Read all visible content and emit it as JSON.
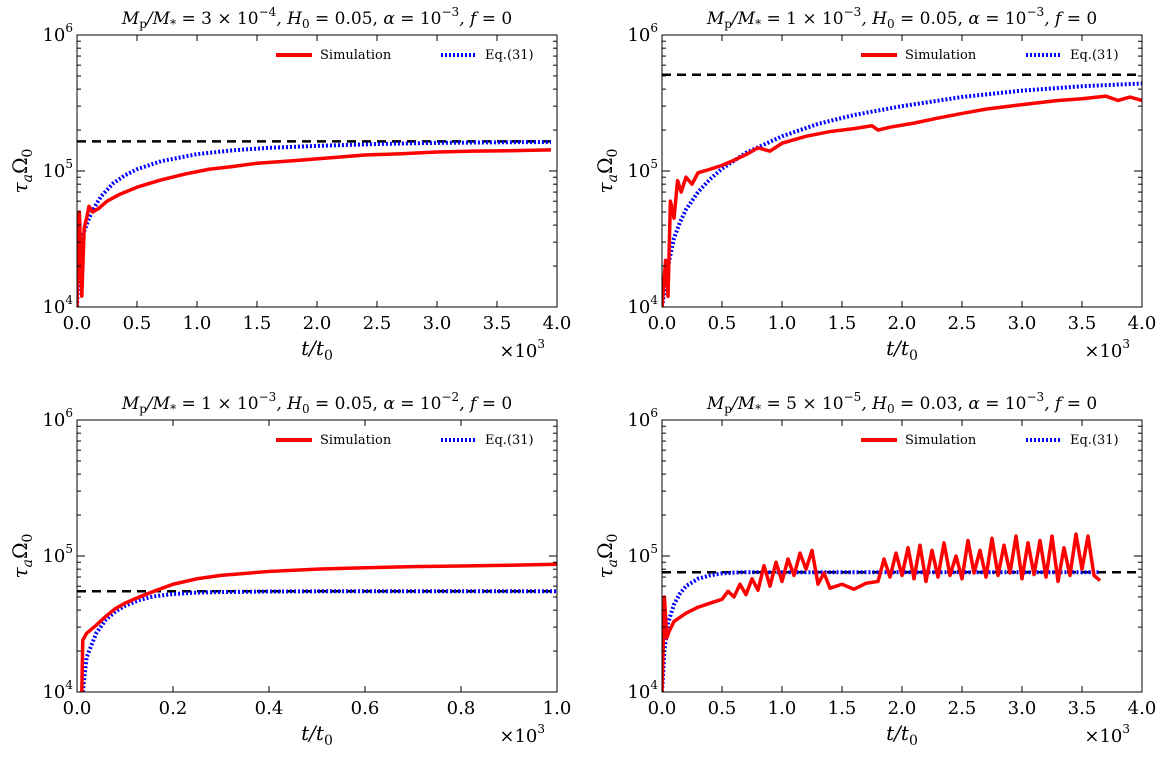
{
  "chart_data": [
    {
      "type": "line",
      "title": "M_p/M_* = 3 × 10^-4, H_0 = 0.05, α = 10^-3, f = 0",
      "title_parts": {
        "ratio": "3 × 10",
        "ratio_exp": "−4",
        "H0": "0.05",
        "alpha_exp": "−3",
        "f": "0"
      },
      "xlabel": "t/t0",
      "ylabel": "τaΩ0",
      "xlim": [
        0,
        4.0
      ],
      "ylim_log10": [
        4,
        6
      ],
      "x_ticks": [
        "0.0",
        "0.5",
        "1.0",
        "1.5",
        "2.0",
        "2.5",
        "3.0",
        "3.5",
        "4.0"
      ],
      "y_ticks": [
        {
          "base": "10",
          "exp": "4"
        },
        {
          "base": "10",
          "exp": "5"
        },
        {
          "base": "10",
          "exp": "6"
        }
      ],
      "x_multiplier": {
        "text": "×10",
        "exp": "3"
      },
      "legend": [
        "Simulation",
        "Eq.(31)"
      ],
      "asymptote": 165000,
      "series": [
        {
          "name": "Simulation",
          "color": "#ff0000",
          "x": [
            0,
            0.02,
            0.04,
            0.06,
            0.08,
            0.1,
            0.13,
            0.18,
            0.25,
            0.35,
            0.5,
            0.7,
            0.9,
            1.1,
            1.3,
            1.5,
            1.8,
            2.1,
            2.4,
            2.7,
            3.0,
            3.3,
            3.6,
            3.95
          ],
          "y": [
            10000,
            50000,
            12000,
            38000,
            45000,
            55000,
            50000,
            53000,
            60000,
            67000,
            76000,
            86000,
            95000,
            103000,
            108000,
            114000,
            119000,
            125000,
            131000,
            134000,
            138000,
            140000,
            141000,
            143000
          ]
        },
        {
          "name": "Eq.(31)",
          "color": "#0000ff",
          "x": [
            0.0,
            0.02,
            0.05,
            0.1,
            0.15,
            0.2,
            0.3,
            0.4,
            0.5,
            0.7,
            1.0,
            1.3,
            1.6,
            2.0,
            2.5,
            3.0,
            3.5,
            3.95
          ],
          "y": [
            10000,
            24000,
            34000,
            45000,
            55000,
            65000,
            81000,
            93000,
            103000,
            118000,
            133000,
            142000,
            148000,
            153000,
            158000,
            161000,
            162500,
            163500
          ]
        }
      ]
    },
    {
      "type": "line",
      "title": "M_p/M_* = 1 × 10^-3, H_0 = 0.05, α = 10^-3, f = 0",
      "title_parts": {
        "ratio": "1 × 10",
        "ratio_exp": "−3",
        "H0": "0.05",
        "alpha_exp": "−3",
        "f": "0"
      },
      "xlabel": "t/t0",
      "ylabel": "τaΩ0",
      "xlim": [
        0,
        4.0
      ],
      "ylim_log10": [
        4,
        6
      ],
      "x_ticks": [
        "0.0",
        "0.5",
        "1.0",
        "1.5",
        "2.0",
        "2.5",
        "3.0",
        "3.5",
        "4.0"
      ],
      "y_ticks": [
        {
          "base": "10",
          "exp": "4"
        },
        {
          "base": "10",
          "exp": "5"
        },
        {
          "base": "10",
          "exp": "6"
        }
      ],
      "x_multiplier": {
        "text": "×10",
        "exp": "3"
      },
      "legend": [
        "Simulation",
        "Eq.(31)"
      ],
      "asymptote": 510000,
      "series": [
        {
          "name": "Simulation",
          "color": "#ff0000",
          "x": [
            0,
            0.03,
            0.05,
            0.07,
            0.1,
            0.13,
            0.16,
            0.2,
            0.25,
            0.3,
            0.4,
            0.5,
            0.6,
            0.7,
            0.8,
            0.9,
            1.0,
            1.2,
            1.4,
            1.6,
            1.75,
            1.8,
            1.9,
            2.1,
            2.3,
            2.5,
            2.7,
            2.9,
            3.1,
            3.3,
            3.5,
            3.7,
            3.8,
            3.9,
            4.0
          ],
          "y": [
            10000,
            22000,
            12000,
            60000,
            45000,
            85000,
            70000,
            90000,
            80000,
            97000,
            103000,
            110000,
            120000,
            132000,
            148000,
            140000,
            160000,
            180000,
            195000,
            205000,
            215000,
            200000,
            210000,
            225000,
            245000,
            265000,
            285000,
            300000,
            315000,
            330000,
            340000,
            355000,
            330000,
            350000,
            330000
          ]
        },
        {
          "name": "Eq.(31)",
          "color": "#0000ff",
          "x": [
            0.0,
            0.03,
            0.06,
            0.1,
            0.15,
            0.2,
            0.3,
            0.4,
            0.5,
            0.7,
            1.0,
            1.3,
            1.6,
            2.0,
            2.5,
            3.0,
            3.5,
            4.0
          ],
          "y": [
            10000,
            15000,
            22000,
            32000,
            42000,
            52000,
            70000,
            87000,
            104000,
            136000,
            180000,
            222000,
            258000,
            300000,
            350000,
            390000,
            420000,
            440000
          ]
        }
      ]
    },
    {
      "type": "line",
      "title": "M_p/M_* = 1 × 10^-3, H_0 = 0.05, α = 10^-2, f = 0",
      "title_parts": {
        "ratio": "1 × 10",
        "ratio_exp": "−3",
        "H0": "0.05",
        "alpha_exp": "−2",
        "f": "0"
      },
      "xlabel": "t/t0",
      "ylabel": "τaΩ0",
      "xlim": [
        0,
        1.0
      ],
      "ylim_log10": [
        4,
        6
      ],
      "x_ticks": [
        "0.0",
        "0.2",
        "0.4",
        "0.6",
        "0.8",
        "1.0"
      ],
      "y_ticks": [
        {
          "base": "10",
          "exp": "4"
        },
        {
          "base": "10",
          "exp": "5"
        },
        {
          "base": "10",
          "exp": "6"
        }
      ],
      "x_multiplier": {
        "text": "×10",
        "exp": "3"
      },
      "legend": [
        "Simulation",
        "Eq.(31)"
      ],
      "asymptote": 55000,
      "series": [
        {
          "name": "Simulation",
          "color": "#ff0000",
          "x": [
            0.01,
            0.012,
            0.02,
            0.04,
            0.06,
            0.08,
            0.1,
            0.13,
            0.16,
            0.2,
            0.25,
            0.3,
            0.4,
            0.5,
            0.6,
            0.7,
            0.8,
            0.9,
            1.0
          ],
          "y": [
            10000,
            24000,
            27000,
            31000,
            36000,
            41000,
            45000,
            50000,
            55000,
            62000,
            68000,
            72000,
            77000,
            80000,
            82000,
            83500,
            84500,
            85500,
            87000
          ]
        },
        {
          "name": "Eq.(31)",
          "color": "#0000ff",
          "x": [
            0.012,
            0.02,
            0.04,
            0.06,
            0.08,
            0.1,
            0.13,
            0.16,
            0.2,
            0.25,
            0.3,
            0.4,
            0.5,
            0.6,
            0.8,
            1.0
          ],
          "y": [
            10000,
            18000,
            27000,
            34000,
            39000,
            43000,
            47500,
            50500,
            52500,
            53800,
            54300,
            54800,
            55000,
            55000,
            55000,
            55000
          ]
        }
      ]
    },
    {
      "type": "line",
      "title": "M_p/M_* = 5 × 10^-5, H_0 = 0.03, α = 10^-3, f = 0",
      "title_parts": {
        "ratio": "5 × 10",
        "ratio_exp": "−5",
        "H0": "0.03",
        "alpha_exp": "−3",
        "f": "0"
      },
      "xlabel": "t/t0",
      "ylabel": "τaΩ0",
      "xlim": [
        0,
        4.0
      ],
      "ylim_log10": [
        4,
        6
      ],
      "x_ticks": [
        "0.0",
        "0.5",
        "1.0",
        "1.5",
        "2.0",
        "2.5",
        "3.0",
        "3.5",
        "4.0"
      ],
      "y_ticks": [
        {
          "base": "10",
          "exp": "4"
        },
        {
          "base": "10",
          "exp": "5"
        },
        {
          "base": "10",
          "exp": "6"
        }
      ],
      "x_multiplier": {
        "text": "×10",
        "exp": "3"
      },
      "legend": [
        "Simulation",
        "Eq.(31)"
      ],
      "asymptote": 76000,
      "series": [
        {
          "name": "Simulation",
          "color": "#ff0000",
          "x": [
            0,
            0.02,
            0.04,
            0.06,
            0.1,
            0.2,
            0.3,
            0.4,
            0.5,
            0.55,
            0.6,
            0.65,
            0.7,
            0.75,
            0.8,
            0.85,
            0.9,
            0.95,
            1.0,
            1.05,
            1.1,
            1.15,
            1.2,
            1.25,
            1.3,
            1.35,
            1.4,
            1.5,
            1.6,
            1.7,
            1.8,
            1.85,
            1.9,
            1.95,
            2.0,
            2.05,
            2.1,
            2.15,
            2.2,
            2.25,
            2.3,
            2.35,
            2.4,
            2.45,
            2.5,
            2.55,
            2.6,
            2.65,
            2.7,
            2.75,
            2.8,
            2.85,
            2.9,
            2.95,
            3.0,
            3.05,
            3.1,
            3.15,
            3.2,
            3.25,
            3.3,
            3.35,
            3.4,
            3.45,
            3.5,
            3.55,
            3.6,
            3.65
          ],
          "y": [
            10000,
            50000,
            25000,
            28000,
            33000,
            38000,
            42000,
            45000,
            48000,
            55000,
            50000,
            62000,
            52000,
            68000,
            56000,
            85000,
            60000,
            90000,
            65000,
            95000,
            72000,
            105000,
            80000,
            110000,
            62000,
            75000,
            58000,
            62000,
            57000,
            63000,
            65000,
            95000,
            70000,
            105000,
            72000,
            115000,
            68000,
            120000,
            65000,
            110000,
            70000,
            125000,
            72000,
            100000,
            68000,
            130000,
            75000,
            110000,
            70000,
            135000,
            72000,
            120000,
            75000,
            140000,
            68000,
            125000,
            73000,
            130000,
            70000,
            140000,
            65000,
            115000,
            72000,
            145000,
            80000,
            140000,
            72000,
            66000
          ]
        },
        {
          "name": "Eq.(31)",
          "color": "#0000ff",
          "x": [
            0.0,
            0.02,
            0.05,
            0.1,
            0.15,
            0.2,
            0.3,
            0.4,
            0.5,
            0.6,
            0.7,
            0.8,
            1.0,
            1.5,
            2.0,
            2.5,
            3.0,
            3.5,
            3.65
          ],
          "y": [
            10000,
            20000,
            32000,
            44000,
            53000,
            60000,
            68000,
            72000,
            74500,
            75500,
            76000,
            76000,
            76000,
            76000,
            76000,
            76000,
            76000,
            76000,
            76000
          ]
        }
      ]
    }
  ]
}
